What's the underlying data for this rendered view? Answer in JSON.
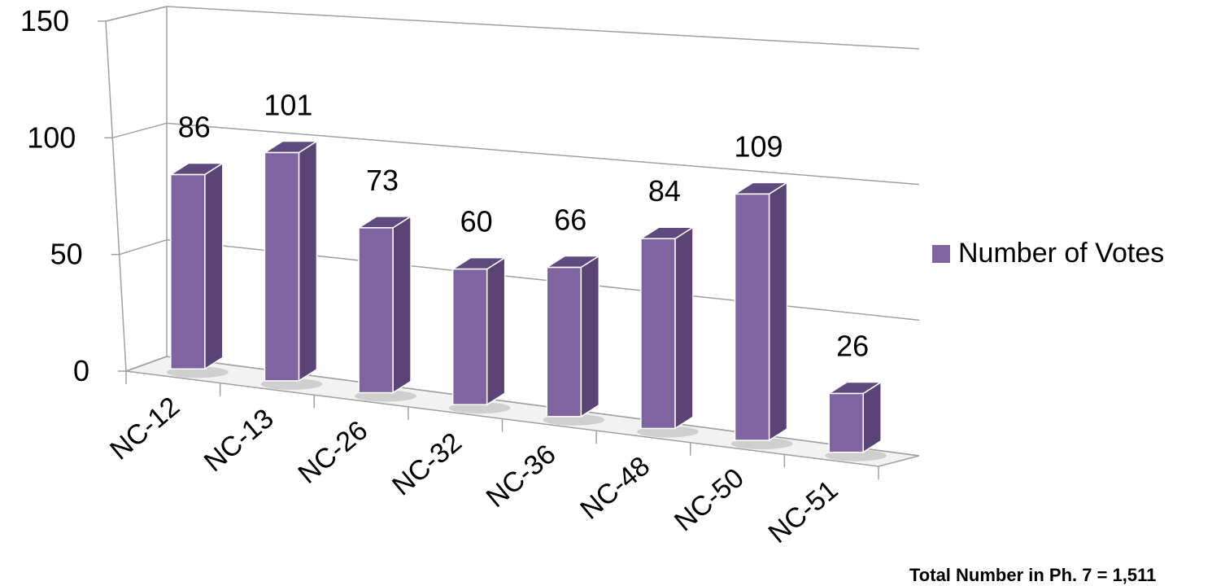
{
  "chart_data": {
    "type": "bar",
    "style": "3d-column",
    "categories": [
      "NC-12",
      "NC-13",
      "NC-26",
      "NC-32",
      "NC-36",
      "NC-48",
      "NC-50",
      "NC-51"
    ],
    "series": [
      {
        "name": "Number of Votes",
        "values": [
          86,
          101,
          73,
          60,
          66,
          84,
          109,
          26
        ]
      }
    ],
    "ylim": [
      0,
      150
    ],
    "yticks": [
      0,
      50,
      100,
      150
    ],
    "grid": true,
    "legend_position": "right",
    "data_labels": true,
    "colors": {
      "bar_front": "#8064a2",
      "bar_side": "#5a4476",
      "bar_top": "#5f4a80",
      "grid": "#a0a0a0"
    }
  },
  "footer_note": "Total Number in Ph. 7 = 1,511"
}
